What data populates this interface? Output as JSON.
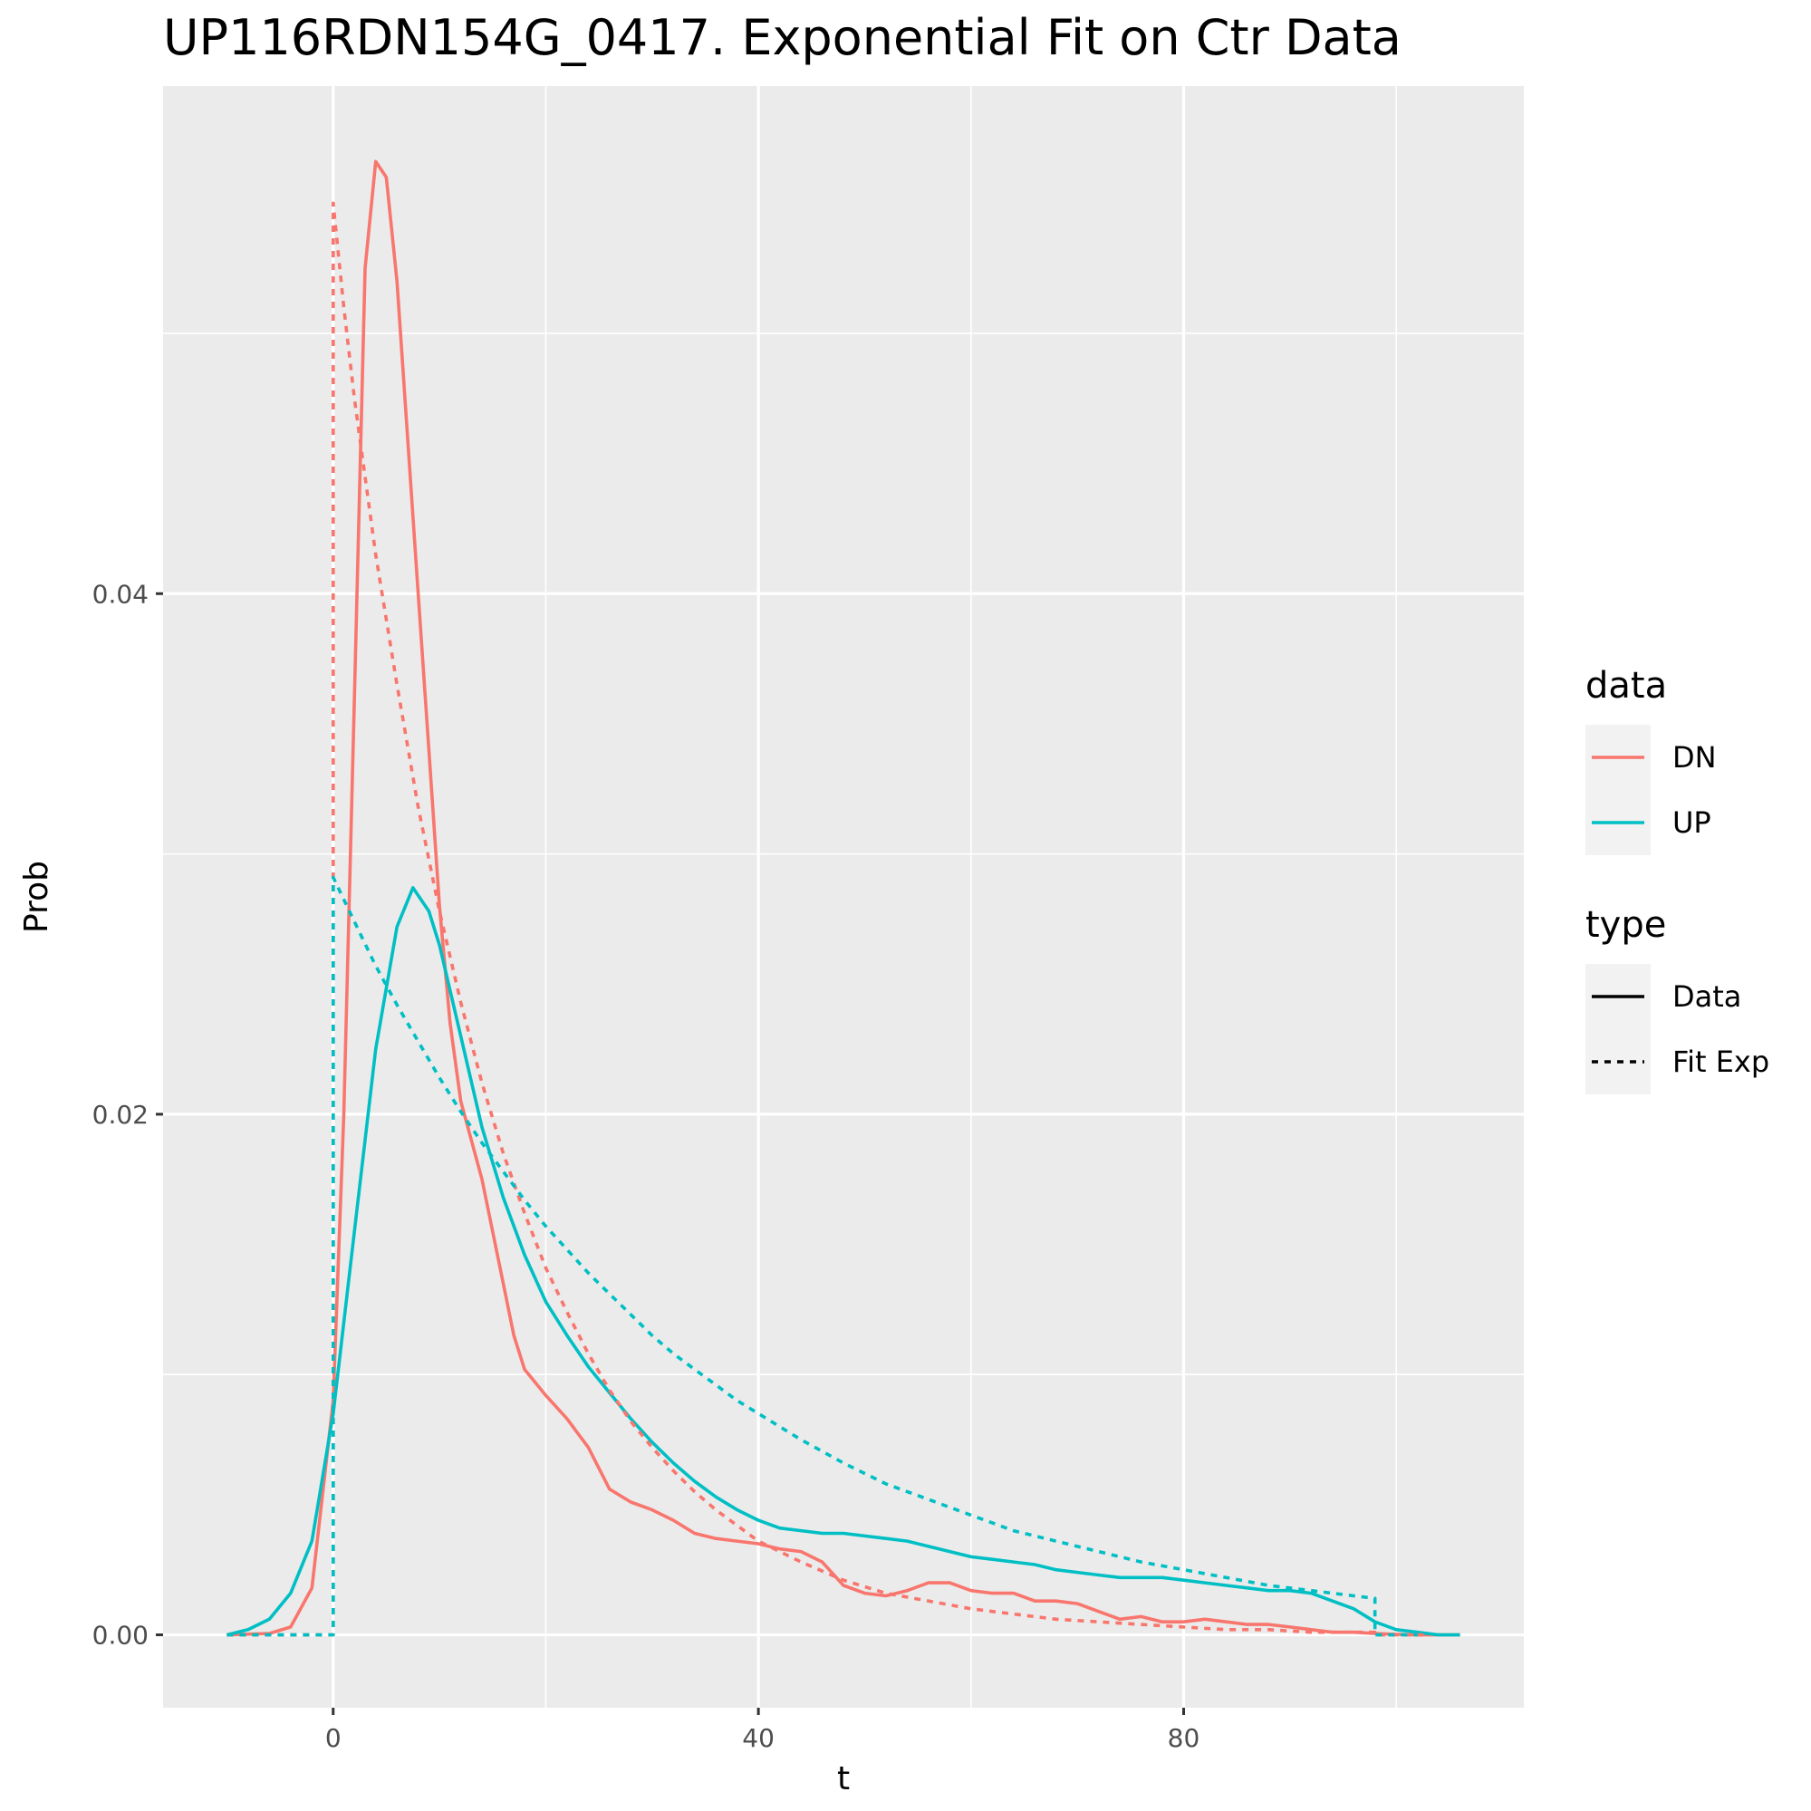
{
  "chart_data": {
    "type": "line",
    "title": "UP116RDN154G_0417. Exponential Fit on Ctr Data",
    "xlabel": "t",
    "ylabel": "Prob",
    "xlim": [
      -16,
      112
    ],
    "ylim": [
      -0.0028,
      0.0595
    ],
    "x_ticks": [
      0,
      40,
      80
    ],
    "x_tick_labels": [
      "0",
      "40",
      "80"
    ],
    "x_minor_gridlines": [
      20,
      60,
      100
    ],
    "y_ticks": [
      0,
      0.02,
      0.04
    ],
    "y_tick_labels": [
      "0.00",
      "0.02",
      "0.04"
    ],
    "y_minor_gridlines": [
      0.01,
      0.03,
      0.05
    ],
    "grid": true,
    "legend_position": "right",
    "colors": {
      "DN": "#F8766D",
      "UP": "#00BFC4",
      "panel": "#EBEBEB",
      "grid": "#FFFFFF"
    },
    "legends": [
      {
        "title": "data",
        "entries": [
          {
            "label": "DN",
            "color": "#F8766D",
            "linetype": "solid"
          },
          {
            "label": "UP",
            "color": "#00BFC4",
            "linetype": "solid"
          }
        ]
      },
      {
        "title": "type",
        "entries": [
          {
            "label": "Data",
            "color": "#000000",
            "linetype": "solid"
          },
          {
            "label": "Fit Exp",
            "color": "#000000",
            "linetype": "dashed"
          }
        ]
      }
    ],
    "series": [
      {
        "name": "DN",
        "type": "Data",
        "color": "#F8766D",
        "linetype": "solid",
        "points": [
          [
            -10,
            0
          ],
          [
            -6,
            5e-05
          ],
          [
            -4,
            0.0003
          ],
          [
            -2,
            0.0018
          ],
          [
            0,
            0.009
          ],
          [
            1,
            0.02
          ],
          [
            2,
            0.036
          ],
          [
            3,
            0.0525
          ],
          [
            4,
            0.0566
          ],
          [
            5,
            0.056
          ],
          [
            6,
            0.052
          ],
          [
            7,
            0.046
          ],
          [
            8,
            0.04
          ],
          [
            9,
            0.034
          ],
          [
            10,
            0.028
          ],
          [
            11,
            0.0235
          ],
          [
            12,
            0.0205
          ],
          [
            14,
            0.0175
          ],
          [
            16,
            0.0135
          ],
          [
            17,
            0.0115
          ],
          [
            18,
            0.0102
          ],
          [
            20,
            0.0092
          ],
          [
            22,
            0.0083
          ],
          [
            24,
            0.0072
          ],
          [
            26,
            0.0056
          ],
          [
            28,
            0.0051
          ],
          [
            30,
            0.0048
          ],
          [
            32,
            0.0044
          ],
          [
            34,
            0.0039
          ],
          [
            36,
            0.0037
          ],
          [
            38,
            0.0036
          ],
          [
            40,
            0.0035
          ],
          [
            42,
            0.0033
          ],
          [
            44,
            0.0032
          ],
          [
            46,
            0.0028
          ],
          [
            48,
            0.0019
          ],
          [
            50,
            0.0016
          ],
          [
            52,
            0.0015
          ],
          [
            54,
            0.0017
          ],
          [
            56,
            0.002
          ],
          [
            58,
            0.002
          ],
          [
            60,
            0.0017
          ],
          [
            62,
            0.0016
          ],
          [
            64,
            0.0016
          ],
          [
            66,
            0.0013
          ],
          [
            68,
            0.0013
          ],
          [
            70,
            0.0012
          ],
          [
            72,
            0.0009
          ],
          [
            74,
            0.0006
          ],
          [
            76,
            0.0007
          ],
          [
            78,
            0.0005
          ],
          [
            80,
            0.0005
          ],
          [
            82,
            0.0006
          ],
          [
            84,
            0.0005
          ],
          [
            86,
            0.0004
          ],
          [
            88,
            0.0004
          ],
          [
            90,
            0.0003
          ],
          [
            92,
            0.0002
          ],
          [
            94,
            0.0001
          ],
          [
            96,
            0.0001
          ],
          [
            98,
            5e-05
          ],
          [
            100,
            2e-05
          ],
          [
            102,
            0
          ],
          [
            106,
            0
          ]
        ]
      },
      {
        "name": "UP",
        "type": "Data",
        "color": "#00BFC4",
        "linetype": "solid",
        "points": [
          [
            -10,
            0
          ],
          [
            -8,
            0.0002
          ],
          [
            -6,
            0.0006
          ],
          [
            -4,
            0.0016
          ],
          [
            -2,
            0.0036
          ],
          [
            0,
            0.0085
          ],
          [
            2,
            0.0155
          ],
          [
            4,
            0.0225
          ],
          [
            6,
            0.0272
          ],
          [
            7.5,
            0.0287
          ],
          [
            9,
            0.0278
          ],
          [
            10,
            0.0265
          ],
          [
            12,
            0.023
          ],
          [
            14,
            0.0195
          ],
          [
            16,
            0.0168
          ],
          [
            18,
            0.0146
          ],
          [
            20,
            0.0128
          ],
          [
            22,
            0.0115
          ],
          [
            24,
            0.0103
          ],
          [
            26,
            0.0093
          ],
          [
            28,
            0.0083
          ],
          [
            30,
            0.0074
          ],
          [
            32,
            0.0066
          ],
          [
            34,
            0.0059
          ],
          [
            36,
            0.0053
          ],
          [
            38,
            0.0048
          ],
          [
            40,
            0.0044
          ],
          [
            42,
            0.0041
          ],
          [
            44,
            0.004
          ],
          [
            46,
            0.0039
          ],
          [
            48,
            0.0039
          ],
          [
            50,
            0.0038
          ],
          [
            52,
            0.0037
          ],
          [
            54,
            0.0036
          ],
          [
            56,
            0.0034
          ],
          [
            58,
            0.0032
          ],
          [
            60,
            0.003
          ],
          [
            62,
            0.0029
          ],
          [
            64,
            0.0028
          ],
          [
            66,
            0.0027
          ],
          [
            68,
            0.0025
          ],
          [
            70,
            0.0024
          ],
          [
            72,
            0.0023
          ],
          [
            74,
            0.0022
          ],
          [
            76,
            0.0022
          ],
          [
            78,
            0.0022
          ],
          [
            80,
            0.0021
          ],
          [
            82,
            0.002
          ],
          [
            84,
            0.0019
          ],
          [
            86,
            0.0018
          ],
          [
            88,
            0.0017
          ],
          [
            90,
            0.0017
          ],
          [
            92,
            0.0016
          ],
          [
            94,
            0.0013
          ],
          [
            96,
            0.001
          ],
          [
            98,
            0.0005
          ],
          [
            100,
            0.0002
          ],
          [
            102,
            0.0001
          ],
          [
            104,
            0
          ],
          [
            106,
            0
          ]
        ]
      },
      {
        "name": "DN",
        "type": "Fit Exp",
        "color": "#F8766D",
        "linetype": "dashed",
        "points": [
          [
            -10,
            0
          ],
          [
            0,
            0
          ],
          [
            0,
            0.055
          ],
          [
            1,
            0.051
          ],
          [
            2,
            0.0475
          ],
          [
            4,
            0.0415
          ],
          [
            6,
            0.0365
          ],
          [
            8,
            0.0318
          ],
          [
            10,
            0.0278
          ],
          [
            12,
            0.0243
          ],
          [
            14,
            0.0212
          ],
          [
            16,
            0.0185
          ],
          [
            18,
            0.0162
          ],
          [
            20,
            0.0141
          ],
          [
            22,
            0.0124
          ],
          [
            24,
            0.0108
          ],
          [
            26,
            0.0094
          ],
          [
            28,
            0.0082
          ],
          [
            30,
            0.0072
          ],
          [
            32,
            0.0063
          ],
          [
            34,
            0.0055
          ],
          [
            36,
            0.0048
          ],
          [
            38,
            0.0042
          ],
          [
            40,
            0.0036
          ],
          [
            44,
            0.0028
          ],
          [
            48,
            0.0021
          ],
          [
            52,
            0.0016
          ],
          [
            56,
            0.0013
          ],
          [
            60,
            0.001
          ],
          [
            64,
            0.0008
          ],
          [
            68,
            0.0006
          ],
          [
            72,
            0.0005
          ],
          [
            76,
            0.0004
          ],
          [
            80,
            0.0003
          ],
          [
            84,
            0.0002
          ],
          [
            88,
            0.0002
          ],
          [
            92,
            0.0001
          ],
          [
            98,
            0.0001
          ],
          [
            98,
            0
          ],
          [
            103,
            0
          ]
        ]
      },
      {
        "name": "UP",
        "type": "Fit Exp",
        "color": "#00BFC4",
        "linetype": "dashed",
        "points": [
          [
            -10,
            0
          ],
          [
            0,
            0
          ],
          [
            0,
            0.0291
          ],
          [
            2,
            0.0274
          ],
          [
            4,
            0.0257
          ],
          [
            6,
            0.0242
          ],
          [
            8,
            0.0228
          ],
          [
            10,
            0.0214
          ],
          [
            12,
            0.0201
          ],
          [
            14,
            0.0189
          ],
          [
            16,
            0.0178
          ],
          [
            18,
            0.0167
          ],
          [
            20,
            0.0157
          ],
          [
            22,
            0.0148
          ],
          [
            24,
            0.0139
          ],
          [
            26,
            0.0131
          ],
          [
            28,
            0.0123
          ],
          [
            30,
            0.0115
          ],
          [
            32,
            0.0108
          ],
          [
            34,
            0.0102
          ],
          [
            36,
            0.0096
          ],
          [
            38,
            0.009
          ],
          [
            40,
            0.0085
          ],
          [
            44,
            0.0075
          ],
          [
            48,
            0.0066
          ],
          [
            52,
            0.0058
          ],
          [
            56,
            0.0052
          ],
          [
            60,
            0.0046
          ],
          [
            64,
            0.004
          ],
          [
            68,
            0.0036
          ],
          [
            72,
            0.0032
          ],
          [
            76,
            0.0028
          ],
          [
            80,
            0.0025
          ],
          [
            84,
            0.0022
          ],
          [
            88,
            0.0019
          ],
          [
            92,
            0.0017
          ],
          [
            96,
            0.0015
          ],
          [
            98,
            0.0014
          ],
          [
            98,
            0
          ],
          [
            102,
            0
          ]
        ]
      }
    ]
  }
}
